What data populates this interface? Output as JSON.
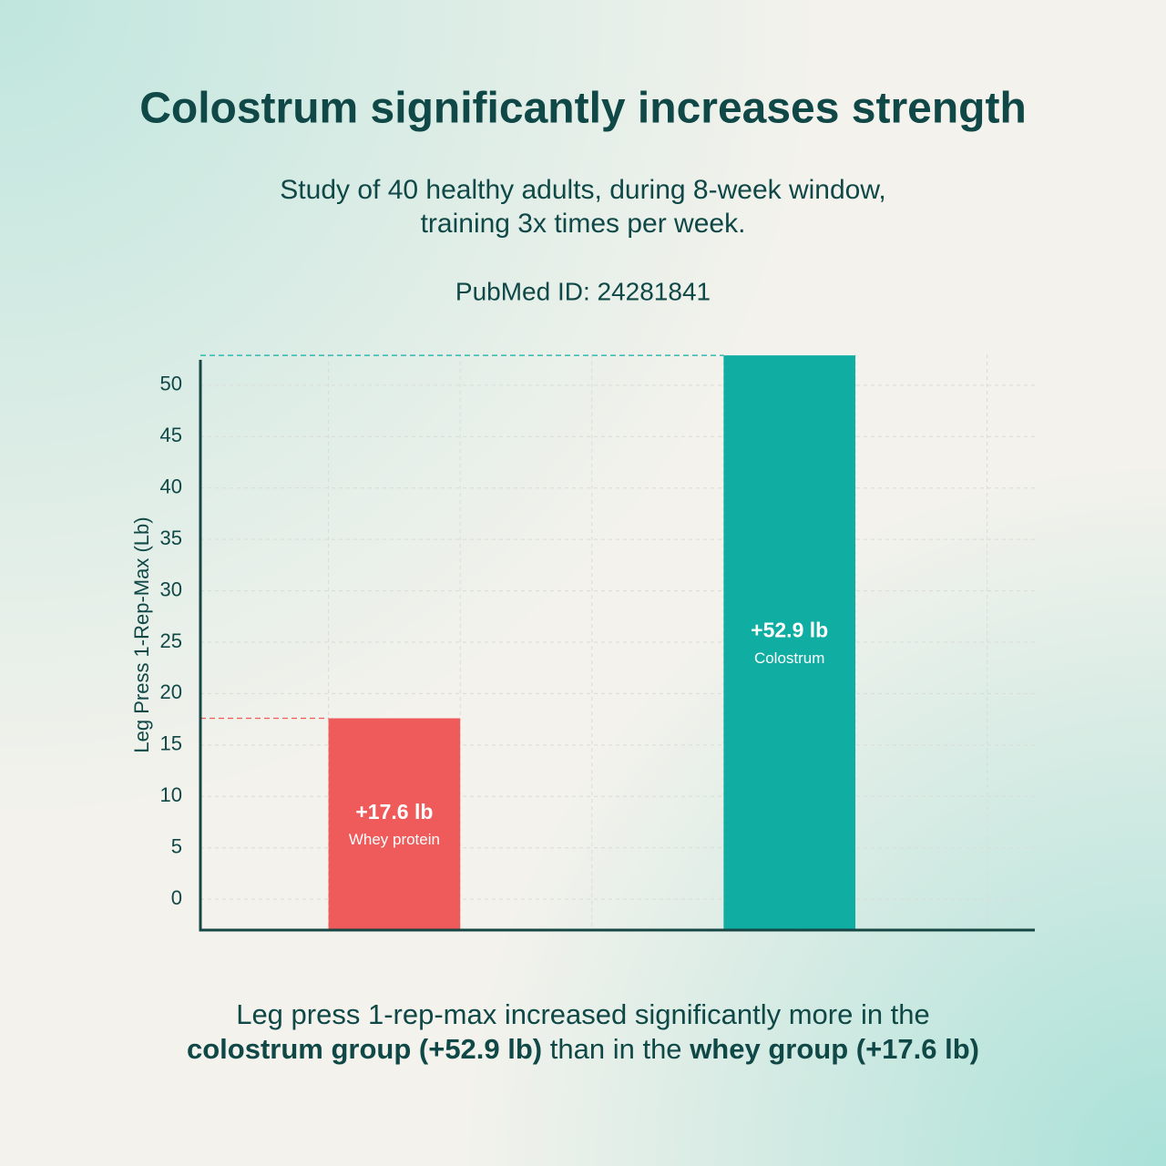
{
  "chart_data": {
    "type": "bar",
    "title": "Colostrum significantly increases strength",
    "subtitle": [
      "Study of 40 healthy adults, during 8-week window,",
      "training 3x times per week."
    ],
    "source": "PubMed ID: 24281841",
    "y_label": "Leg Press 1-Rep-Max (Lb)",
    "categories": [
      "Whey protein",
      "Colostrum"
    ],
    "values": [
      17.6,
      52.9
    ],
    "value_labels": [
      "+17.6 lb",
      "+52.9 lb"
    ],
    "colors": [
      "#ef5a5a",
      "#10ada3"
    ],
    "ylim": [
      -3,
      53
    ],
    "yticks": [
      0,
      5,
      10,
      15,
      20,
      25,
      30,
      35,
      40,
      45,
      50
    ],
    "grid": true,
    "footer": [
      "Leg press 1-rep-max increased significantly more in the",
      "colostrum group (+52.9 lb)",
      "than in the",
      "whey group (+17.6 lb)"
    ]
  }
}
